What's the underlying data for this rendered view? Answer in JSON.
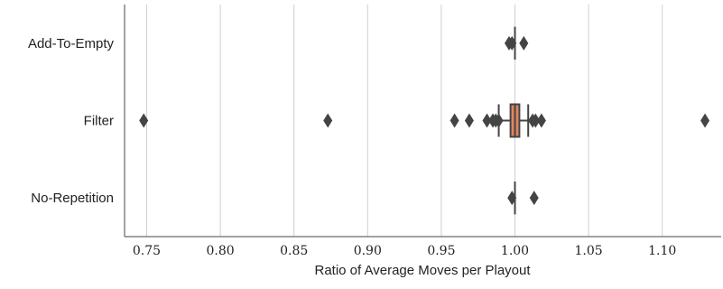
{
  "chart_data": {
    "type": "boxplot",
    "orientation": "horizontal",
    "xlabel": "Ratio of Average Moves per Playout",
    "xlim": [
      0.735,
      1.14
    ],
    "xticks": [
      "0.75",
      "0.80",
      "0.85",
      "0.90",
      "0.95",
      "1.00",
      "1.05",
      "1.10"
    ],
    "xtick_values": [
      0.75,
      0.8,
      0.85,
      0.9,
      0.95,
      1.0,
      1.05,
      1.1
    ],
    "grid": "vertical",
    "box_color": "#e0845f",
    "line_color": "#444444",
    "categories": [
      {
        "name": "Add-To-Empty",
        "q1": 1.0,
        "median": 1.0,
        "q3": 1.0,
        "whisker_low": 1.0,
        "whisker_high": 1.0,
        "outliers": [
          0.996,
          0.998,
          1.006
        ]
      },
      {
        "name": "Filter",
        "q1": 0.997,
        "median": 1.0,
        "q3": 1.003,
        "whisker_low": 0.989,
        "whisker_high": 1.009,
        "outliers": [
          0.748,
          0.873,
          0.959,
          0.969,
          0.981,
          0.985,
          0.987,
          0.989,
          1.012,
          1.014,
          1.018,
          1.129
        ]
      },
      {
        "name": "No-Repetition",
        "q1": 1.0,
        "median": 1.0,
        "q3": 1.0,
        "whisker_low": 1.0,
        "whisker_high": 1.0,
        "outliers": [
          0.998,
          1.013
        ]
      }
    ]
  }
}
